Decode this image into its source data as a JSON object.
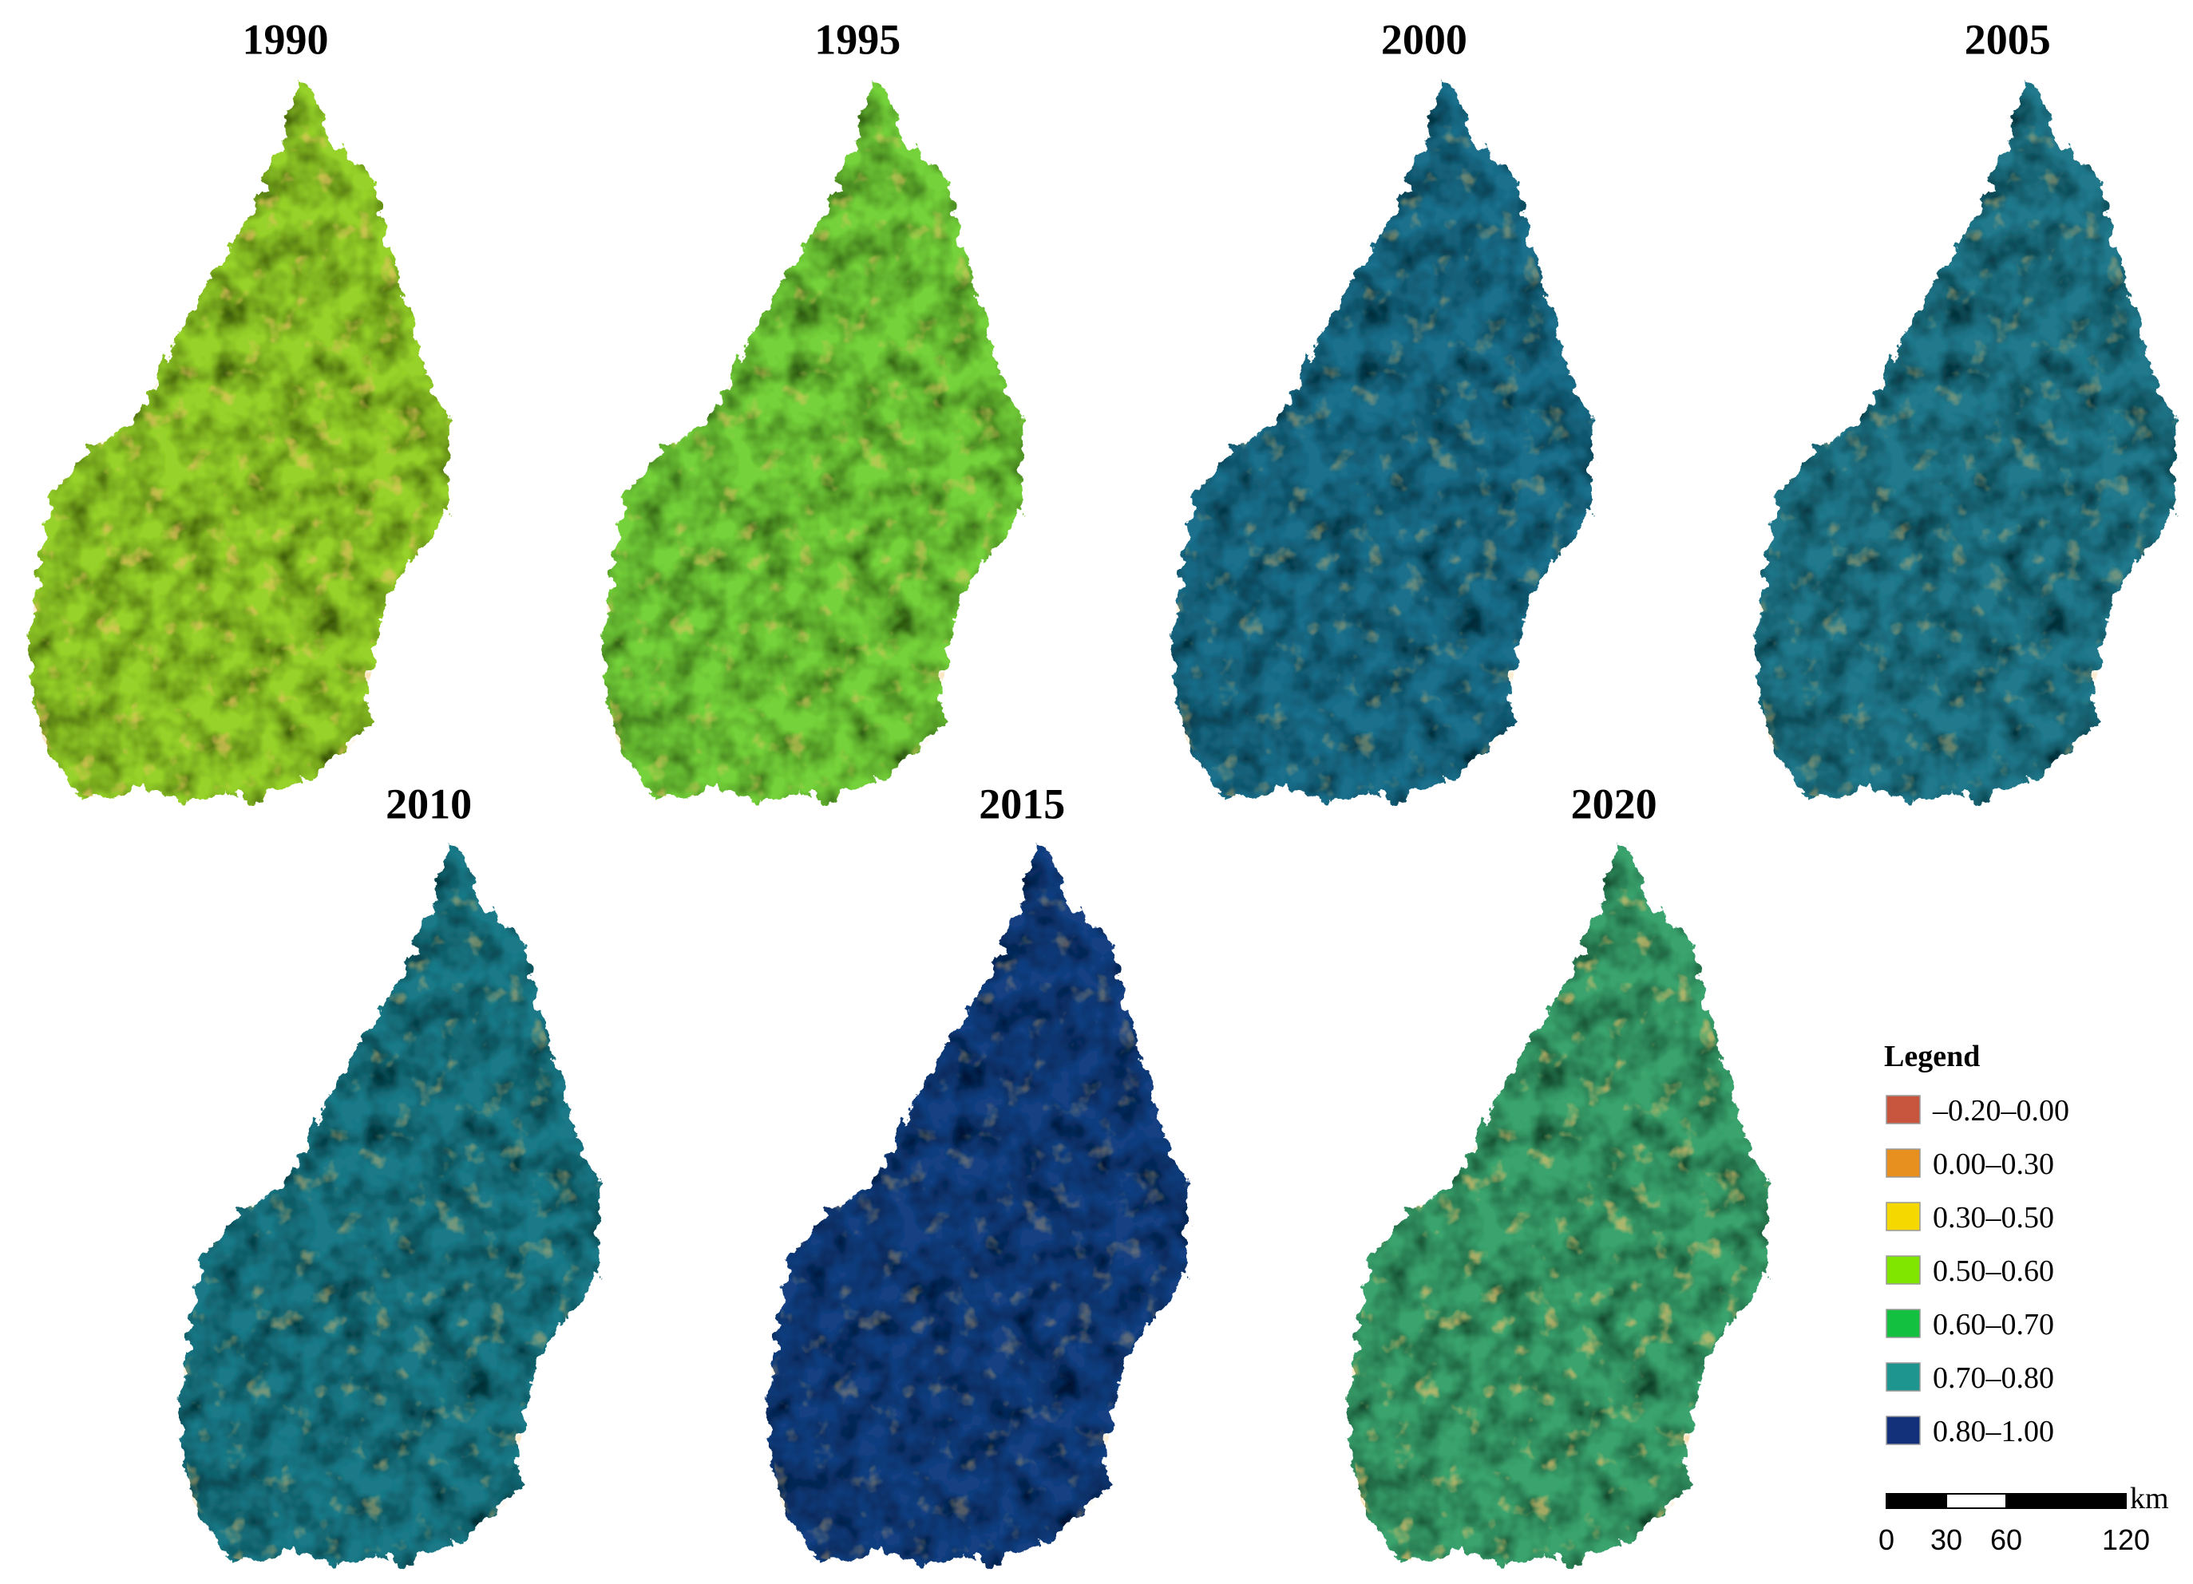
{
  "panels": [
    {
      "title": "1990"
    },
    {
      "title": "1995"
    },
    {
      "title": "2000"
    },
    {
      "title": "2005"
    },
    {
      "title": "2010"
    },
    {
      "title": "2015"
    },
    {
      "title": "2020"
    }
  ],
  "legend": {
    "title": "Legend",
    "items": [
      {
        "label": "–0.20–0.00",
        "color": "#c8553d"
      },
      {
        "label": "0.00–0.30",
        "color": "#e8901f"
      },
      {
        "label": "0.30–0.50",
        "color": "#f5d800"
      },
      {
        "label": "0.50–0.60",
        "color": "#80e600"
      },
      {
        "label": "0.60–0.70",
        "color": "#13c040"
      },
      {
        "label": "0.70–0.80",
        "color": "#1f9590"
      },
      {
        "label": "0.80–1.00",
        "color": "#13317a"
      }
    ]
  },
  "scale_bar": {
    "ticks": [
      0,
      30,
      60,
      120
    ],
    "unit": "km"
  }
}
